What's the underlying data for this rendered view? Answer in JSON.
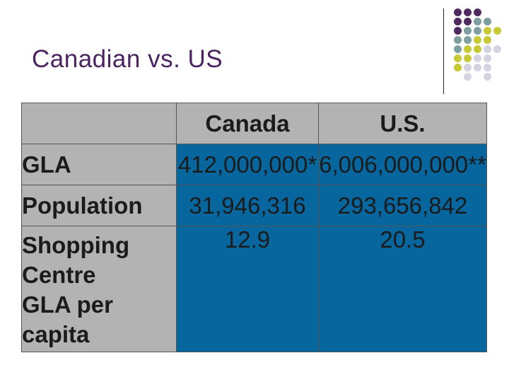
{
  "slide": {
    "title": "Canadian vs. US"
  },
  "colors": {
    "title": "#4a235f",
    "header_gray": "#b3b3b3",
    "cell_blue": "#08669e",
    "dot_purple": "#4e2a5e",
    "dot_teal": "#7f9ea0",
    "dot_yellow": "#c7c935",
    "dot_lavender": "#d3d3e2"
  },
  "table": {
    "columns": [
      "",
      "Canada",
      "U.S."
    ],
    "rows": [
      {
        "label": "GLA",
        "canada": "412,000,000*",
        "us": "6,006,000,000**"
      },
      {
        "label": "Population",
        "canada": "31,946,316",
        "us": "293,656,842"
      },
      {
        "label": "Shopping Centre GLA per capita",
        "canada": "12.9",
        "us": "20.5"
      }
    ]
  }
}
